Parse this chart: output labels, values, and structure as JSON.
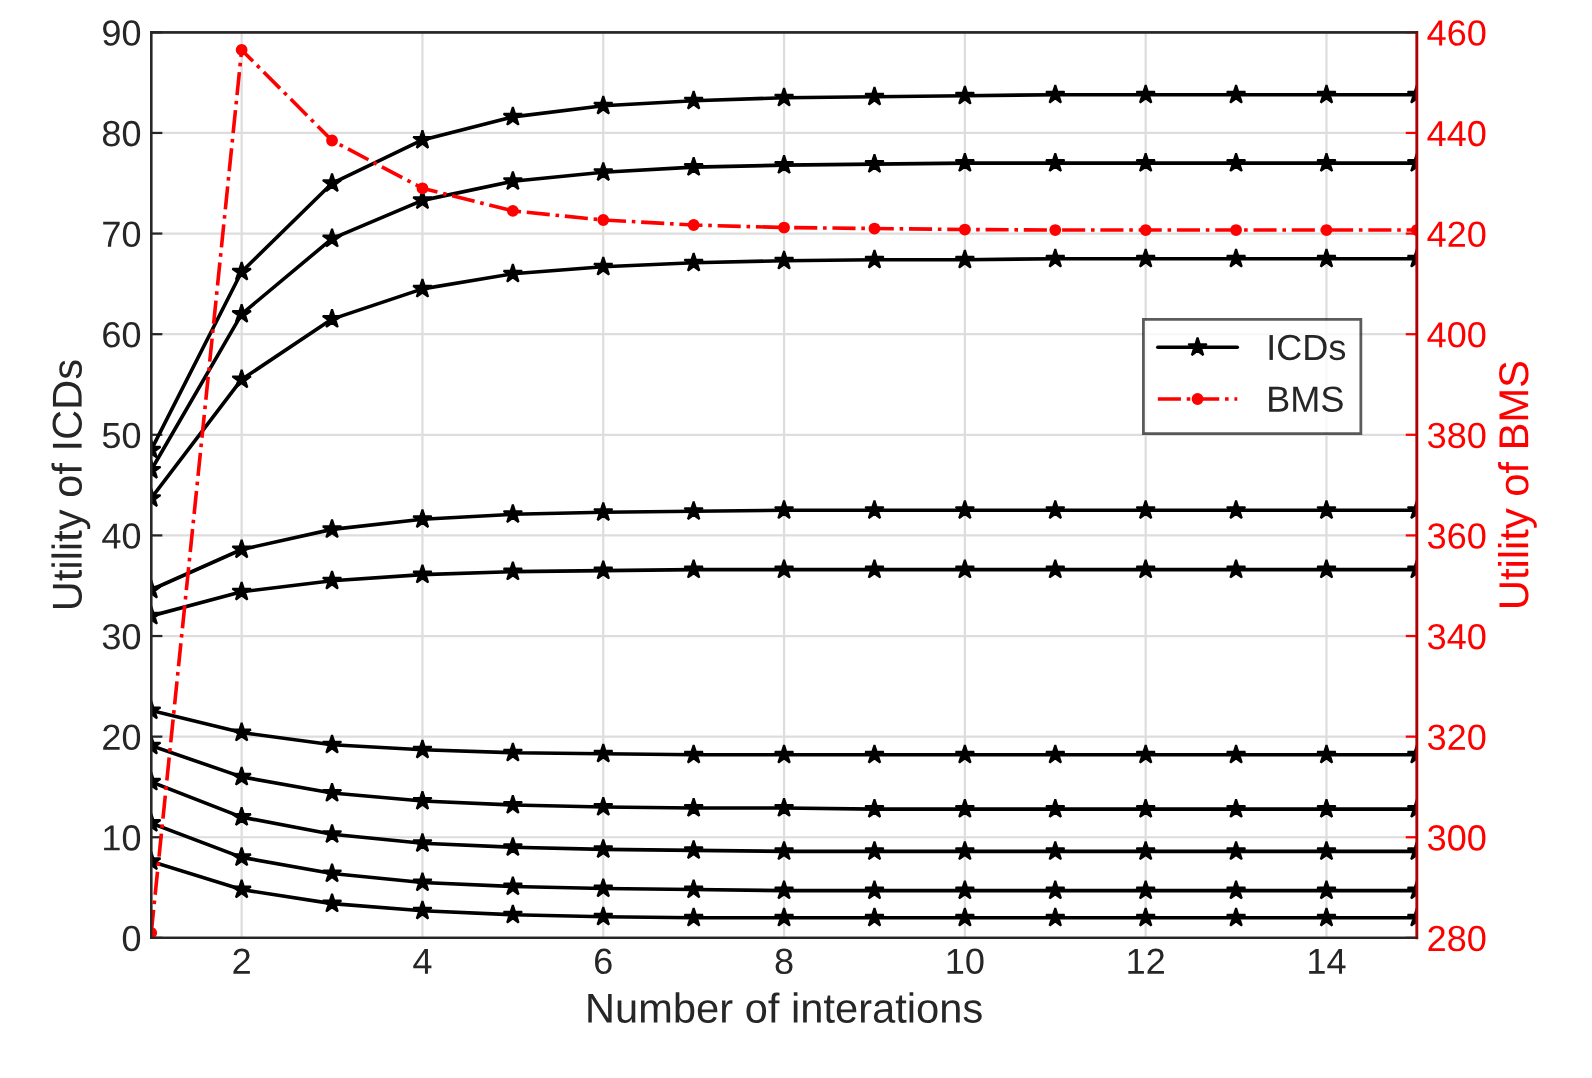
{
  "chart_data": {
    "type": "line",
    "xlabel": "Number of interations",
    "ylabel": "Utility of ICDs",
    "y2label": "Utility of BMS",
    "x": [
      1,
      2,
      3,
      4,
      5,
      6,
      7,
      8,
      9,
      10,
      11,
      12,
      13,
      14,
      15
    ],
    "xlim": [
      1,
      15
    ],
    "xticks": [
      2,
      4,
      6,
      8,
      10,
      12,
      14
    ],
    "ylim": [
      0,
      90
    ],
    "yticks": [
      0,
      10,
      20,
      30,
      40,
      50,
      60,
      70,
      80,
      90
    ],
    "y2lim": [
      280,
      460
    ],
    "y2ticks": [
      280,
      300,
      320,
      340,
      360,
      380,
      400,
      420,
      440,
      460
    ],
    "grid": true,
    "legend": "right",
    "series": [
      {
        "name": "ICDs",
        "color": "#000000",
        "marker": "star",
        "line_style": "solid",
        "values": [
          48.5,
          66.2,
          75,
          79.3,
          81.6,
          82.7,
          83.2,
          83.5,
          83.6,
          83.7,
          83.8,
          83.8,
          83.8,
          83.8,
          83.8
        ]
      },
      {
        "color": "#000000",
        "marker": "star",
        "line_style": "solid",
        "values": [
          46.5,
          62,
          69.5,
          73.3,
          75.2,
          76.1,
          76.6,
          76.8,
          76.9,
          77,
          77,
          77,
          77,
          77,
          77
        ]
      },
      {
        "color": "#000000",
        "marker": "star",
        "line_style": "solid",
        "values": [
          43.7,
          55.5,
          61.5,
          64.5,
          66,
          66.7,
          67.1,
          67.3,
          67.4,
          67.4,
          67.5,
          67.5,
          67.5,
          67.5,
          67.5
        ]
      },
      {
        "color": "#000000",
        "marker": "star",
        "line_style": "solid",
        "values": [
          34.6,
          38.6,
          40.6,
          41.6,
          42.1,
          42.3,
          42.4,
          42.5,
          42.5,
          42.5,
          42.5,
          42.5,
          42.5,
          42.5,
          42.5
        ]
      },
      {
        "color": "#000000",
        "marker": "star",
        "line_style": "solid",
        "values": [
          32,
          34.4,
          35.5,
          36.1,
          36.4,
          36.5,
          36.6,
          36.6,
          36.6,
          36.6,
          36.6,
          36.6,
          36.6,
          36.6,
          36.6
        ]
      },
      {
        "color": "#000000",
        "marker": "star",
        "line_style": "solid",
        "values": [
          22.6,
          20.4,
          19.2,
          18.7,
          18.4,
          18.3,
          18.2,
          18.2,
          18.2,
          18.2,
          18.2,
          18.2,
          18.2,
          18.2,
          18.2
        ]
      },
      {
        "color": "#000000",
        "marker": "star",
        "line_style": "solid",
        "values": [
          19.1,
          16,
          14.4,
          13.6,
          13.2,
          13,
          12.9,
          12.9,
          12.8,
          12.8,
          12.8,
          12.8,
          12.8,
          12.8,
          12.8
        ]
      },
      {
        "color": "#000000",
        "marker": "star",
        "line_style": "solid",
        "values": [
          15.5,
          12,
          10.3,
          9.4,
          9,
          8.8,
          8.7,
          8.6,
          8.6,
          8.6,
          8.6,
          8.6,
          8.6,
          8.6,
          8.6
        ]
      },
      {
        "color": "#000000",
        "marker": "star",
        "line_style": "solid",
        "values": [
          11.4,
          8,
          6.4,
          5.5,
          5.1,
          4.9,
          4.8,
          4.7,
          4.7,
          4.7,
          4.7,
          4.7,
          4.7,
          4.7,
          4.7
        ]
      },
      {
        "color": "#000000",
        "marker": "star",
        "line_style": "solid",
        "values": [
          7.6,
          4.8,
          3.4,
          2.7,
          2.3,
          2.1,
          2,
          2,
          2,
          2,
          2,
          2,
          2,
          2,
          2
        ]
      },
      {
        "name": "BMS",
        "axis": "y2",
        "color": "#ff0000",
        "marker": "circle",
        "line_style": "dashdot",
        "values": [
          281,
          456.5,
          438.5,
          429,
          424.5,
          422.7,
          421.7,
          421.2,
          421,
          420.8,
          420.7,
          420.7,
          420.7,
          420.7,
          420.7
        ]
      }
    ]
  }
}
